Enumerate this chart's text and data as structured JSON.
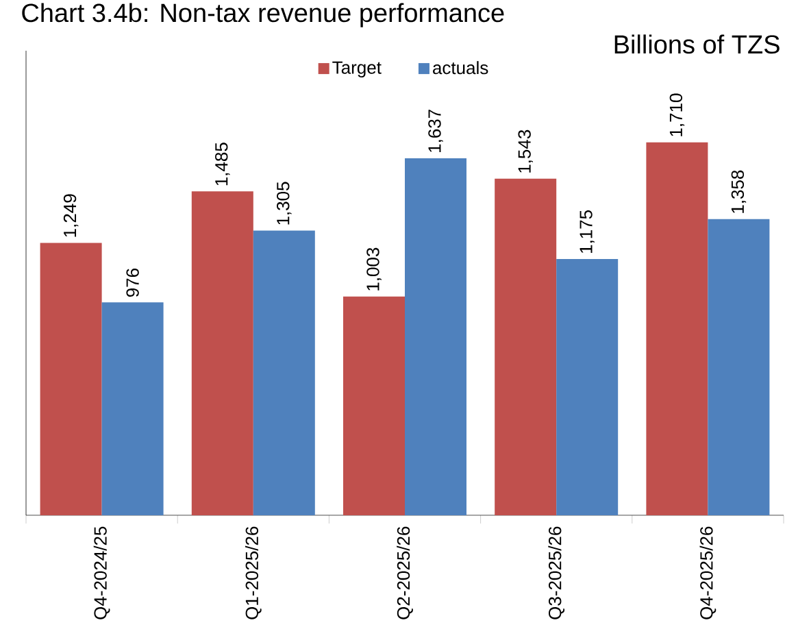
{
  "chart_data": {
    "type": "bar",
    "title": "Chart 3.4b: Non-tax revenue performance",
    "subtitle": "Billions of TZS",
    "categories": [
      "Q4-2024/25",
      "Q1-2025/26",
      "Q2-2025/26",
      "Q3-2025/26",
      "Q4-2025/26"
    ],
    "series": [
      {
        "name": "Target",
        "color": "#c0504d",
        "values": [
          1249,
          1485,
          1003,
          1543,
          1710
        ],
        "value_labels": [
          "1,249",
          "1,485",
          "1,003",
          "1,543",
          "1,710"
        ]
      },
      {
        "name": "actuals",
        "color": "#4f81bd",
        "values": [
          976,
          1305,
          1637,
          1175,
          1358
        ],
        "value_labels": [
          "976",
          "1,305",
          "1,637",
          "1,175",
          "1,358"
        ]
      }
    ],
    "ylim": [
      0,
      2130
    ],
    "tick_labels": "x",
    "legend": "top"
  }
}
